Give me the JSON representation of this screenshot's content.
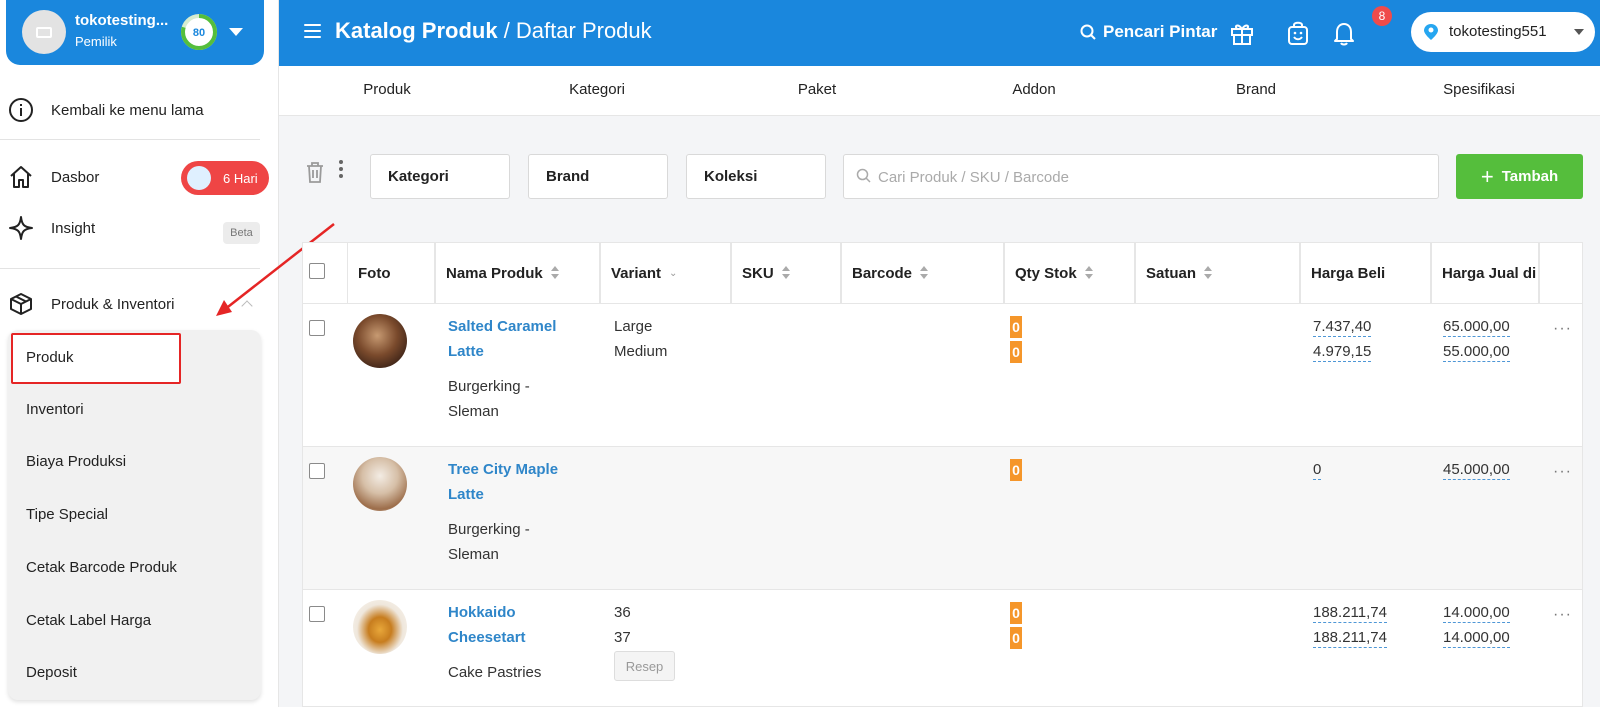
{
  "account": {
    "name": "tokotesting...",
    "role": "Pemilik",
    "score": "80"
  },
  "sidebar": {
    "back_label": "Kembali ke menu lama",
    "items": [
      {
        "label": "Dasbor",
        "badge": "6 Hari"
      },
      {
        "label": "Insight",
        "badge": "Beta"
      },
      {
        "label": "Produk & Inventori"
      }
    ],
    "submenu": [
      "Produk",
      "Inventori",
      "Biaya Produksi",
      "Tipe Special",
      "Cetak Barcode Produk",
      "Cetak Label Harga",
      "Deposit"
    ]
  },
  "header": {
    "breadcrumb_main": "Katalog Produk",
    "breadcrumb_sep": " / ",
    "breadcrumb_sub": "Daftar Produk",
    "smart_search": "Pencari Pintar",
    "notif_count": "8",
    "store": "tokotesting551"
  },
  "tabs": [
    "Produk",
    "Kategori",
    "Paket",
    "Addon",
    "Brand",
    "Spesifikasi"
  ],
  "toolbar": {
    "filters": [
      "Kategori",
      "Brand",
      "Koleksi"
    ],
    "search_placeholder": "Cari Produk / SKU / Barcode",
    "add_label": "Tambah"
  },
  "table": {
    "columns": [
      "Foto",
      "Nama Produk",
      "Variant",
      "SKU",
      "Barcode",
      "Qty Stok",
      "Satuan",
      "Harga Beli",
      "Harga Jual di"
    ],
    "rows": [
      {
        "name_l1": "Salted Caramel",
        "name_l2": "Latte",
        "cat_l1": "Burgerking -",
        "cat_l2": "Sleman",
        "variants": [
          "Large",
          "Medium"
        ],
        "qty": [
          "0",
          "0"
        ],
        "buy": [
          "7.437,40",
          "4.979,15"
        ],
        "sell": [
          "65.000,00",
          "55.000,00"
        ]
      },
      {
        "name_l1": "Tree City Maple",
        "name_l2": "Latte",
        "cat_l1": "Burgerking -",
        "cat_l2": "Sleman",
        "variants": [],
        "qty": [
          "0"
        ],
        "buy": [
          "0"
        ],
        "sell": [
          "45.000,00"
        ]
      },
      {
        "name_l1": "Hokkaido",
        "name_l2": "Cheesetart",
        "cat_l1": "Cake Pastries",
        "cat_l2": "",
        "variants": [
          "36",
          "37"
        ],
        "recipe_label": "Resep",
        "qty": [
          "0",
          "0"
        ],
        "buy": [
          "188.211,74",
          "188.211,74"
        ],
        "sell": [
          "14.000,00",
          "14.000,00"
        ]
      }
    ],
    "more_glyph": "···"
  },
  "colors": {
    "primary": "#1a87dd",
    "add_button": "#55be3c",
    "qty_badge": "#f5962a",
    "danger": "#ef4545",
    "link": "#2f86c9"
  },
  "icons": [
    "info-icon",
    "home-icon",
    "sparkle-icon",
    "box-icon",
    "search-icon",
    "gift-icon",
    "bag-icon",
    "bell-icon",
    "pin-icon",
    "trash-icon",
    "kebab-icon",
    "plus-icon"
  ]
}
